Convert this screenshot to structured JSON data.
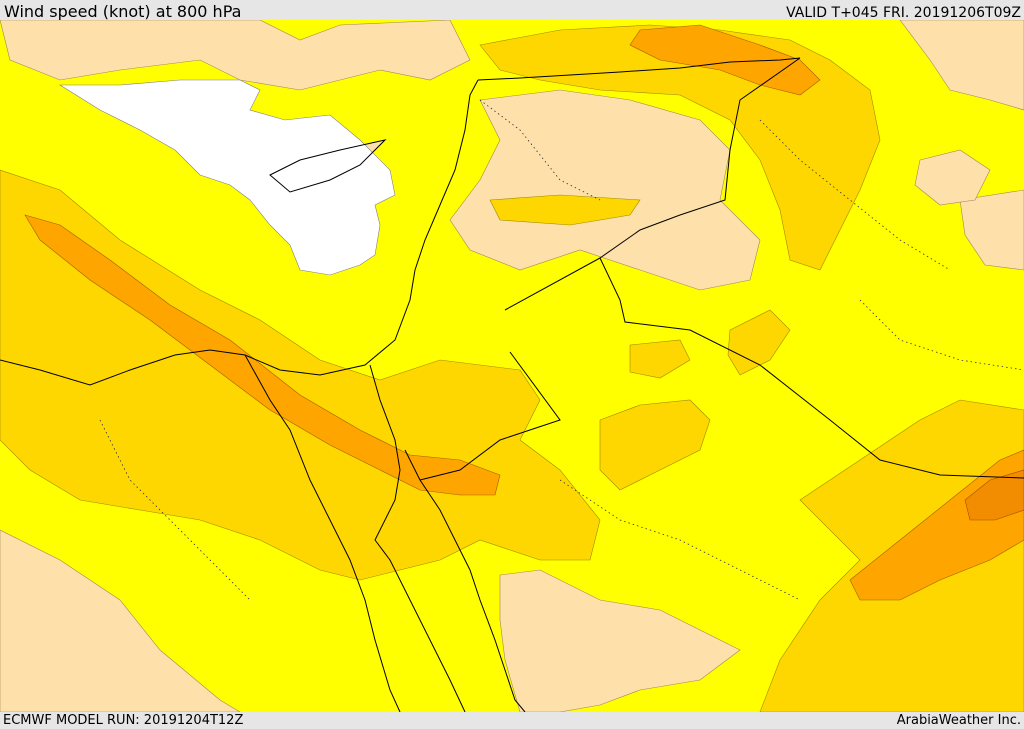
{
  "header": {
    "title": "Wind speed (knot) at 800 hPa",
    "valid": "VALID T+045 FRI. 20191206T09Z"
  },
  "footer": {
    "model_run": "ECMWF MODEL RUN: 20191204T12Z",
    "credit": "ArabiaWeather Inc."
  },
  "colors": {
    "background_band": "#e6e6e6",
    "calm": "#ffffff",
    "light": "#fde0aa",
    "moderate": "#ffff00",
    "fresh": "#ffd700",
    "strong": "#ffa500",
    "border": "#000000"
  }
}
